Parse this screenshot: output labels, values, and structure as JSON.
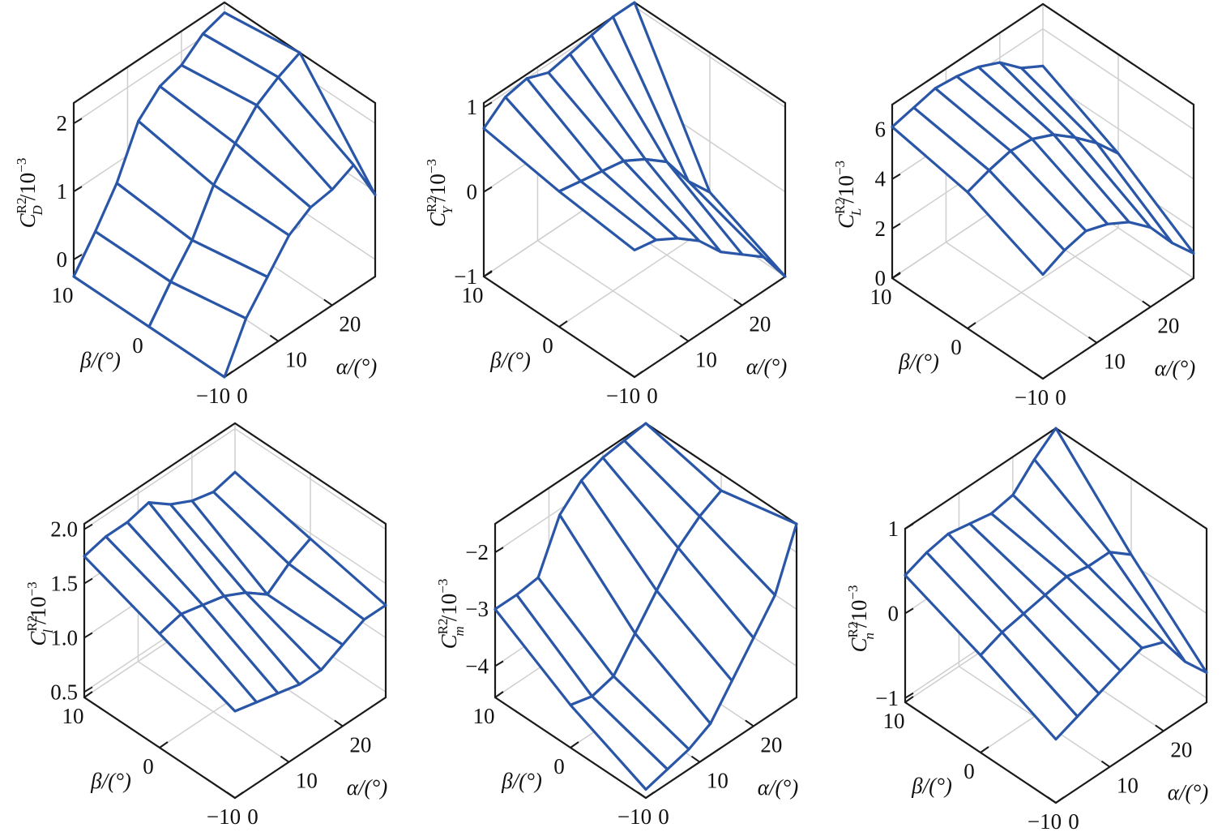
{
  "colors": {
    "surface": "#2a56a8",
    "box": "#1a1a1a",
    "grid": "#cfcfcf"
  },
  "chart_data": [
    {
      "type": "surface-wireframe",
      "zlabel": {
        "symbol": "C",
        "sup": "R2",
        "sub": "D",
        "unit": "/10",
        "exp": "−3"
      },
      "xlabel": "α/(°)",
      "ylabel": "β/(°)",
      "alpha": [
        0,
        4,
        8,
        12,
        16,
        20,
        24,
        28
      ],
      "beta": [
        -10,
        0,
        10
      ],
      "z": [
        [
          -0.25,
          0.4,
          0.8,
          1.2,
          1.4,
          1.45,
          1.6,
          0.95
        ],
        [
          -0.25,
          0.2,
          0.6,
          1.2,
          1.6,
          1.95,
          2.15,
          2.3
        ],
        [
          -0.25,
          0.2,
          0.7,
          1.4,
          1.7,
          1.8,
          2.05,
          2.15
        ]
      ],
      "alim": [
        0,
        28
      ],
      "blim": [
        -10,
        10
      ],
      "zlim": [
        -0.25,
        2.3
      ],
      "aticks": [
        0,
        10,
        20
      ],
      "bticks": [
        -10,
        0,
        10
      ],
      "zticks": [
        0,
        1,
        2
      ],
      "aticklabels": [
        "0",
        "10",
        "20"
      ],
      "bticklabels": [
        "−10",
        "0",
        "10"
      ],
      "zticklabels": [
        "0",
        "1",
        "2"
      ]
    },
    {
      "type": "surface-wireframe",
      "zlabel": {
        "symbol": "C",
        "sup": "R2",
        "sub": "Y",
        "unit": "/10",
        "exp": "−3"
      },
      "xlabel": "α/(°)",
      "ylabel": "β/(°)",
      "alpha": [
        0,
        4,
        8,
        12,
        16,
        20,
        24,
        28
      ],
      "beta": [
        -10,
        0,
        10
      ],
      "z": [
        [
          0.5,
          0.45,
          0.3,
          0.1,
          -0.2,
          -0.4,
          -0.6,
          -1.0
        ],
        [
          0.6,
          0.55,
          0.5,
          0.45,
          0.3,
          0.1,
          -0.3,
          -0.6
        ],
        [
          0.75,
          0.95,
          1.0,
          0.9,
          0.95,
          1.0,
          1.05,
          1.05
        ]
      ],
      "alim": [
        0,
        28
      ],
      "blim": [
        -10,
        10
      ],
      "zlim": [
        -1.0,
        1.05
      ],
      "aticks": [
        0,
        10,
        20
      ],
      "bticks": [
        -10,
        0,
        10
      ],
      "zticks": [
        -1,
        0,
        1
      ],
      "aticklabels": [
        "0",
        "10",
        "20"
      ],
      "bticklabels": [
        "−10",
        "0",
        "10"
      ],
      "zticklabels": [
        "−1",
        "0",
        "1"
      ]
    },
    {
      "type": "surface-wireframe",
      "zlabel": {
        "symbol": "C",
        "sup": "R2",
        "sub": "L",
        "unit": "/10",
        "exp": "−3"
      },
      "xlabel": "α/(°)",
      "ylabel": "β/(°)",
      "alpha": [
        0,
        4,
        8,
        12,
        16,
        20,
        24,
        28
      ],
      "beta": [
        -10,
        0,
        10
      ],
      "z": [
        [
          4.2,
          4.6,
          4.8,
          4.5,
          4.0,
          3.2,
          2.0,
          1.0
        ],
        [
          5.5,
          5.8,
          6.0,
          5.9,
          5.5,
          4.8,
          4.0,
          3.0
        ],
        [
          6.1,
          6.3,
          6.5,
          6.4,
          6.2,
          5.8,
          5.0,
          4.5
        ]
      ],
      "alim": [
        0,
        28
      ],
      "blim": [
        -10,
        10
      ],
      "zlim": [
        0,
        7.0
      ],
      "aticks": [
        0,
        10,
        20
      ],
      "bticks": [
        -10,
        0,
        10
      ],
      "zticks": [
        0,
        2,
        4,
        6
      ],
      "aticklabels": [
        "0",
        "10",
        "20"
      ],
      "bticklabels": [
        "−10",
        "0",
        "10"
      ],
      "zticklabels": [
        "0",
        "2",
        "4",
        "6"
      ]
    },
    {
      "type": "surface-wireframe",
      "zlabel": {
        "symbol": "C",
        "sup": "R2",
        "sub": "l",
        "unit": "/10",
        "exp": "−3"
      },
      "xlabel": "α/(°)",
      "ylabel": "β/(°)",
      "alpha": [
        0,
        4,
        8,
        12,
        16,
        20,
        24,
        28
      ],
      "beta": [
        -10,
        0,
        10
      ],
      "z": [
        [
          1.25,
          1.2,
          1.15,
          1.1,
          1.1,
          1.2,
          1.3,
          1.3
        ],
        [
          1.5,
          1.55,
          1.5,
          1.45,
          1.35,
          1.2,
          1.35,
          1.45
        ],
        [
          1.75,
          1.8,
          1.8,
          1.85,
          1.7,
          1.6,
          1.55,
          1.6
        ]
      ],
      "alim": [
        0,
        28
      ],
      "blim": [
        -10,
        10
      ],
      "zlim": [
        0.45,
        2.05
      ],
      "aticks": [
        0,
        10,
        20
      ],
      "bticks": [
        -10,
        0,
        10
      ],
      "zticks": [
        0.5,
        1.0,
        1.5,
        2.0
      ],
      "aticklabels": [
        "0",
        "10",
        "20"
      ],
      "bticklabels": [
        "−10",
        "0",
        "10"
      ],
      "zticklabels": [
        "0.5",
        "1.0",
        "1.5",
        "2.0"
      ]
    },
    {
      "type": "surface-wireframe",
      "zlabel": {
        "symbol": "C",
        "sup": "R2",
        "sub": "m",
        "unit": "/10",
        "exp": "−3"
      },
      "xlabel": "α/(°)",
      "ylabel": "β/(°)",
      "alpha": [
        0,
        4,
        8,
        12,
        16,
        20,
        24,
        28
      ],
      "beta": [
        -10,
        0,
        10
      ],
      "z": [
        [
          -4.4,
          -4.3,
          -4.2,
          -4.0,
          -3.5,
          -3.0,
          -2.5,
          -1.5
        ],
        [
          -3.8,
          -3.9,
          -3.8,
          -3.3,
          -2.8,
          -2.3,
          -2.0,
          -1.8
        ],
        [
          -3.0,
          -3.0,
          -2.95,
          -2.1,
          -1.75,
          -1.6,
          -1.55,
          -1.5
        ]
      ],
      "alim": [
        0,
        28
      ],
      "blim": [
        -10,
        10
      ],
      "zlim": [
        -4.55,
        -1.5
      ],
      "aticks": [
        0,
        10,
        20
      ],
      "bticks": [
        -10,
        0,
        10
      ],
      "zticks": [
        -4,
        -3,
        -2
      ],
      "aticklabels": [
        "0",
        "10",
        "20"
      ],
      "bticklabels": [
        "−10",
        "0",
        "10"
      ],
      "zticklabels": [
        "−4",
        "−3",
        "−2"
      ]
    },
    {
      "type": "surface-wireframe",
      "zlabel": {
        "symbol": "C",
        "sup": "R2",
        "sub": "n",
        "unit": "/10",
        "exp": "−3"
      },
      "xlabel": "α/(°)",
      "ylabel": "β/(°)",
      "alpha": [
        0,
        4,
        8,
        12,
        16,
        20,
        24,
        28
      ],
      "beta": [
        -10,
        0,
        10
      ],
      "z": [
        [
          -0.3,
          -0.2,
          -0.1,
          0.0,
          0.1,
          0.0,
          -0.4,
          -0.7
        ],
        [
          0.1,
          0.2,
          0.25,
          0.3,
          0.35,
          0.3,
          0.3,
          0.1
        ],
        [
          0.45,
          0.55,
          0.6,
          0.55,
          0.5,
          0.55,
          0.8,
          1.0
        ]
      ],
      "alim": [
        0,
        28
      ],
      "blim": [
        -10,
        10
      ],
      "zlim": [
        -1.05,
        1.0
      ],
      "aticks": [
        0,
        10,
        20
      ],
      "bticks": [
        -10,
        0,
        10
      ],
      "zticks": [
        -1,
        0,
        1
      ],
      "aticklabels": [
        "0",
        "10",
        "20"
      ],
      "bticklabels": [
        "−10",
        "0",
        "10"
      ],
      "zticklabels": [
        "−1",
        "0",
        "1"
      ]
    }
  ]
}
